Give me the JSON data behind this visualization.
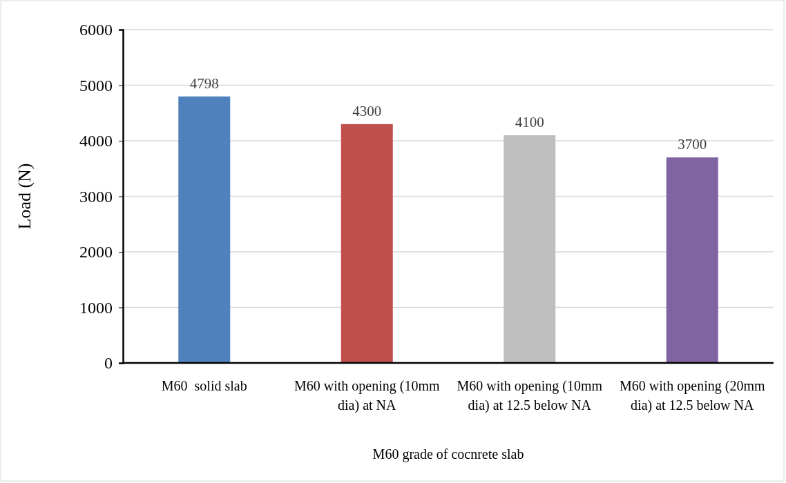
{
  "chart_data": {
    "type": "bar",
    "categories": [
      "M60  solid slab",
      "M60 with opening (10mm dia) at NA",
      "M60 with opening (10mm dia) at 12.5 below NA",
      "M60 with opening (20mm dia) at 12.5 below NA"
    ],
    "values": [
      4798,
      4300,
      4100,
      3700
    ],
    "colors": [
      "#4f81bd",
      "#c0504d",
      "#bfbfbf",
      "#8064a2"
    ],
    "xlabel": "M60 grade of cocnrete slab",
    "ylabel": "Load (N)",
    "ylim": [
      0,
      6000
    ],
    "yticks": [
      0,
      1000,
      2000,
      3000,
      4000,
      5000,
      6000
    ],
    "grid": "y",
    "data_labels": true
  }
}
